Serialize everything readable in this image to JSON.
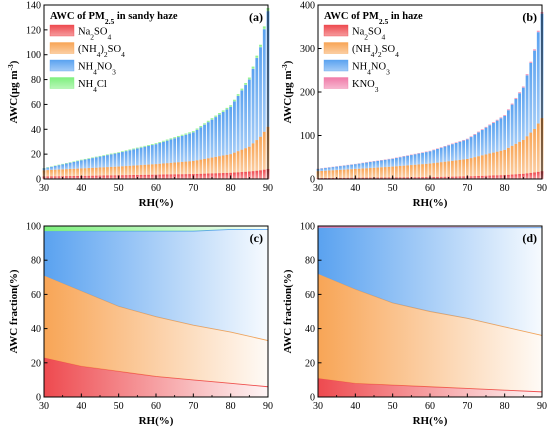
{
  "chart_data": [
    {
      "panel": "(a)",
      "type": "bar",
      "stacked": true,
      "title": "AWC of PM2.5 in sandy haze",
      "title_text": {
        "pre": "AWC of PM",
        "sub": "2.5",
        "post": " in sandy haze"
      },
      "xlabel": "RH(%)",
      "ylabel": "AWC(μg m⁻³)",
      "ylabel_text": {
        "pre": "AWC(μg m",
        "sup": "-3",
        "post": ")"
      },
      "xlim": [
        30,
        90
      ],
      "ylim": [
        0,
        140
      ],
      "xticks": [
        30,
        40,
        50,
        60,
        70,
        80,
        90
      ],
      "yticks": [
        0,
        20,
        40,
        60,
        80,
        100,
        120,
        140
      ],
      "legend_position": "top-left",
      "x": [
        30,
        40,
        50,
        60,
        70,
        80,
        85,
        88,
        90
      ],
      "series": [
        {
          "name": "Na2SO4",
          "legend": {
            "pre": "Na",
            "sub1": "2",
            "mid": "SO",
            "sub2": "4"
          },
          "values": [
            2,
            2.5,
            3,
            3.5,
            4,
            5,
            6,
            7,
            8
          ]
        },
        {
          "name": "(NH4)2SO4",
          "legend": {
            "pre": "(NH",
            "sub1": "4",
            "mid": ")",
            "sub2": "2",
            "post": "SO",
            "sub3": "4"
          },
          "values": [
            5,
            6,
            7,
            8.5,
            10.5,
            15,
            20,
            27,
            34
          ]
        },
        {
          "name": "NH4NO3",
          "legend": {
            "pre": "NH",
            "sub1": "4",
            "mid": "NO",
            "sub2": "3"
          },
          "values": [
            1.5,
            6.5,
            11,
            16,
            23,
            38,
            54,
            72,
            93
          ]
        },
        {
          "name": "NH4Cl",
          "legend": {
            "pre": "NH",
            "sub1": "4",
            "mid": "Cl"
          },
          "values": [
            0.3,
            0.5,
            0.6,
            0.8,
            1,
            1.3,
            1.6,
            2,
            2.5
          ]
        }
      ]
    },
    {
      "panel": "(b)",
      "type": "bar",
      "stacked": true,
      "title": "AWC of PM2.5 in haze",
      "title_text": {
        "pre": "AWC of PM",
        "sub": "2.5",
        "post": " in haze"
      },
      "xlabel": "RH(%)",
      "ylabel": "AWC(μg m⁻³)",
      "ylabel_text": {
        "pre": "AWC(μg m",
        "sup": "-3",
        "post": ")"
      },
      "xlim": [
        30,
        90
      ],
      "ylim": [
        0,
        400
      ],
      "xticks": [
        30,
        40,
        50,
        60,
        70,
        80,
        90
      ],
      "yticks": [
        0,
        100,
        200,
        300,
        400
      ],
      "legend_position": "top-left",
      "x": [
        30,
        40,
        50,
        60,
        70,
        80,
        85,
        88,
        90
      ],
      "series": [
        {
          "name": "Na2SO4",
          "legend": {
            "pre": "Na",
            "sub1": "2",
            "mid": "SO",
            "sub2": "4"
          },
          "values": [
            2,
            3,
            3.5,
            4.5,
            6,
            9,
            12,
            15,
            18
          ]
        },
        {
          "name": "(NH4)2SO4",
          "legend": {
            "pre": "(NH",
            "sub1": "4",
            "mid": ")",
            "sub2": "2",
            "post": "SO",
            "sub3": "4"
          },
          "values": [
            16,
            20,
            25,
            31,
            40,
            58,
            78,
            100,
            122
          ]
        },
        {
          "name": "NH4NO3",
          "legend": {
            "pre": "NH",
            "sub1": "4",
            "mid": "NO",
            "sub2": "3"
          },
          "values": [
            5,
            11,
            18,
            28,
            45,
            78,
            120,
            180,
            240
          ]
        },
        {
          "name": "KNO3",
          "legend": {
            "pre": "KNO",
            "sub1": "3"
          },
          "values": [
            0.5,
            0.7,
            1,
            1.2,
            1.5,
            2,
            2.5,
            3,
            3.5
          ]
        }
      ]
    },
    {
      "panel": "(c)",
      "type": "area",
      "stacked": true,
      "xlabel": "RH(%)",
      "ylabel": "AWC fraction(%)",
      "xlim": [
        30,
        90
      ],
      "ylim": [
        0,
        100
      ],
      "xticks": [
        30,
        40,
        50,
        60,
        70,
        80,
        90
      ],
      "yticks": [
        0,
        20,
        40,
        60,
        80,
        100
      ],
      "x": [
        30,
        40,
        50,
        60,
        70,
        80,
        90
      ],
      "series": [
        {
          "name": "Na2SO4",
          "values": [
            23,
            18,
            15,
            12,
            10,
            8,
            6
          ]
        },
        {
          "name": "(NH4)2SO4",
          "values": [
            48,
            44,
            38,
            35,
            32,
            30,
            27
          ]
        },
        {
          "name": "NH4NO3",
          "values": [
            26,
            35,
            44,
            50,
            55,
            60,
            65
          ]
        },
        {
          "name": "NH4Cl",
          "values": [
            3,
            3,
            3,
            3,
            3,
            2,
            2
          ]
        }
      ]
    },
    {
      "panel": "(d)",
      "type": "area",
      "stacked": true,
      "xlabel": "RH(%)",
      "ylabel": "AWC fraction(%)",
      "xlim": [
        30,
        90
      ],
      "ylim": [
        0,
        100
      ],
      "xticks": [
        30,
        40,
        50,
        60,
        70,
        80,
        90
      ],
      "yticks": [
        0,
        20,
        40,
        60,
        80,
        100
      ],
      "x": [
        30,
        40,
        50,
        60,
        70,
        80,
        90
      ],
      "series": [
        {
          "name": "Na2SO4",
          "values": [
            11,
            8,
            7,
            6,
            5,
            4,
            3
          ]
        },
        {
          "name": "(NH4)2SO4",
          "values": [
            61,
            55,
            48,
            44,
            41,
            37,
            33
          ]
        },
        {
          "name": "NH4NO3",
          "values": [
            27,
            36,
            44,
            49,
            53,
            58,
            63
          ]
        },
        {
          "name": "KNO3",
          "values": [
            1,
            1,
            1,
            1,
            1,
            1,
            1
          ]
        }
      ]
    }
  ],
  "colors": {
    "Na2SO4": "#ee4a4f",
    "(NH4)2SO4": "#f8a556",
    "NH4NO3": "#5aa2f0",
    "NH4Cl": "#7ef07e",
    "KNO3": "#f07aa8"
  }
}
